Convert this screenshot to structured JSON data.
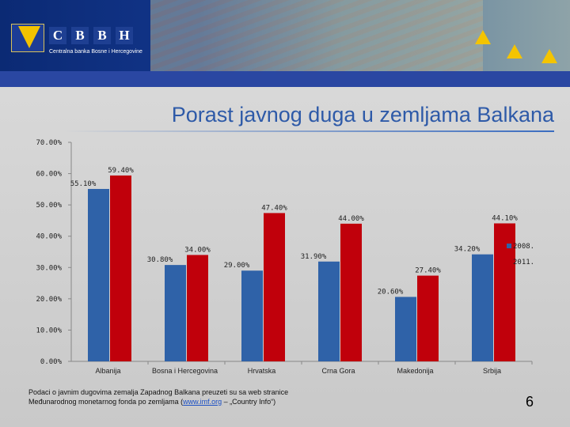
{
  "header": {
    "logo_letters": [
      "C",
      "B",
      "B",
      "H"
    ],
    "logo_subtitle": "Centralna banka Bosne i Hercegovine"
  },
  "title": "Porast javnog duga u zemljama Balkana",
  "colors": {
    "series_2008": "#2f62a8",
    "series_2011": "#c0000b",
    "title": "#2e5aa8"
  },
  "chart_data": {
    "type": "bar",
    "categories": [
      "Albanija",
      "Bosna i Hercegovina",
      "Hrvatska",
      "Crna Gora",
      "Makedonija",
      "Srbija"
    ],
    "series": [
      {
        "name": "2008.",
        "values": [
          55.1,
          30.8,
          29.0,
          31.9,
          20.6,
          34.2
        ],
        "labels": [
          "55.10%",
          "30.80%",
          "29.00%",
          "31.90%",
          "20.60%",
          "34.20%"
        ]
      },
      {
        "name": "2011.",
        "values": [
          59.4,
          34.0,
          47.4,
          44.0,
          27.4,
          44.1
        ],
        "labels": [
          "59.40%",
          "34.00%",
          "47.40%",
          "44.00%",
          "27.40%",
          "44.10%"
        ]
      }
    ],
    "ylim": [
      0,
      70
    ],
    "yticks": [
      "0.00%",
      "10.00%",
      "20.00%",
      "30.00%",
      "40.00%",
      "50.00%",
      "60.00%",
      "70.00%"
    ],
    "grid": false,
    "legend": "right"
  },
  "source": {
    "line1": "Podaci o javnim dugovima zemalja Zapadnog Balkana preuzeti su sa web stranice",
    "line2_prefix": "Međunarodnog monetarnog fonda po zemljama (",
    "link": "www.imf.org",
    "line2_suffix": " – „Country Info“)"
  },
  "page_number": "6"
}
